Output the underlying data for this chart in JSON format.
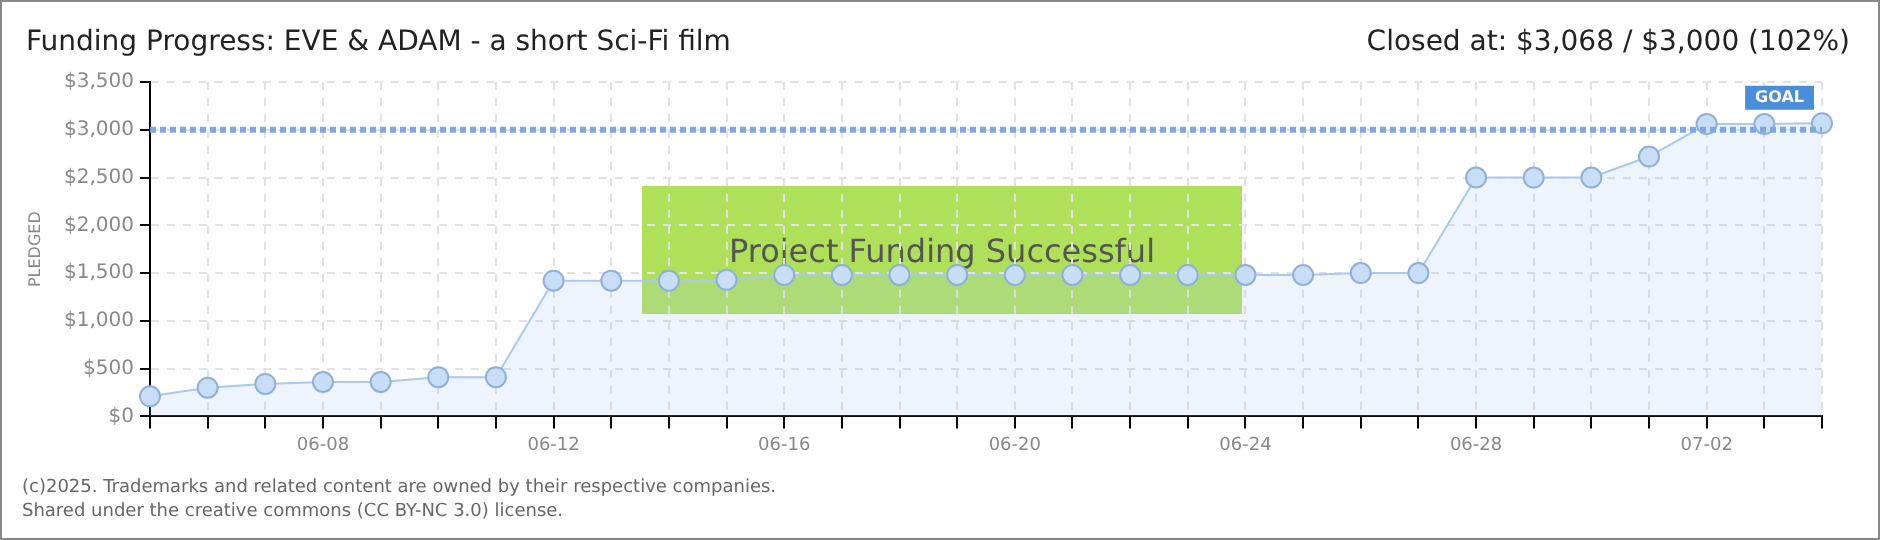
{
  "chart_data": {
    "type": "area",
    "title": "Funding Progress: EVE & ADAM - a short Sci-Fi film",
    "subtitle": "Closed at: $3,068 / $3,000 (102%)",
    "ylabel": "PLEDGED",
    "categories": [
      null,
      null,
      null,
      "06-08",
      null,
      null,
      null,
      "06-12",
      null,
      null,
      null,
      "06-16",
      null,
      null,
      null,
      "06-20",
      null,
      null,
      null,
      "06-24",
      null,
      null,
      null,
      "06-28",
      null,
      null,
      null,
      "07-02",
      null,
      null
    ],
    "series": [
      {
        "color": "#a9c9ee",
        "values": [
          210,
          300,
          340,
          360,
          360,
          410,
          410,
          1420,
          1420,
          1420,
          1430,
          1480,
          1480,
          1480,
          1480,
          1480,
          1480,
          1480,
          1480,
          1480,
          1480,
          1500,
          1500,
          2500,
          2500,
          2500,
          2720,
          3060,
          3060,
          3068
        ]
      }
    ],
    "ylim": [
      0,
      3500
    ],
    "yticks": [
      {
        "value": 0,
        "label": "$0"
      },
      {
        "value": 500,
        "label": "$500"
      },
      {
        "value": 1000,
        "label": "$1,000"
      },
      {
        "value": 1500,
        "label": "$1,500"
      },
      {
        "value": 2000,
        "label": "$2,000"
      },
      {
        "value": 2500,
        "label": "$2,500"
      },
      {
        "value": 3000,
        "label": "$3,000"
      },
      {
        "value": 3500,
        "label": "$3,500"
      }
    ],
    "grid": true,
    "marker": "circle",
    "legend": false,
    "ref_lines": [
      {
        "axis": "y",
        "value": 3000,
        "label": "GOAL",
        "color": "#7fa9de",
        "line_style": "dotted"
      }
    ],
    "annotations": [
      "Project Funding Successful",
      "(c)2025. Trademarks and related content are owned by their respective companies.",
      "Shared under the creative commons (CC BY-NC 3.0) license."
    ]
  }
}
